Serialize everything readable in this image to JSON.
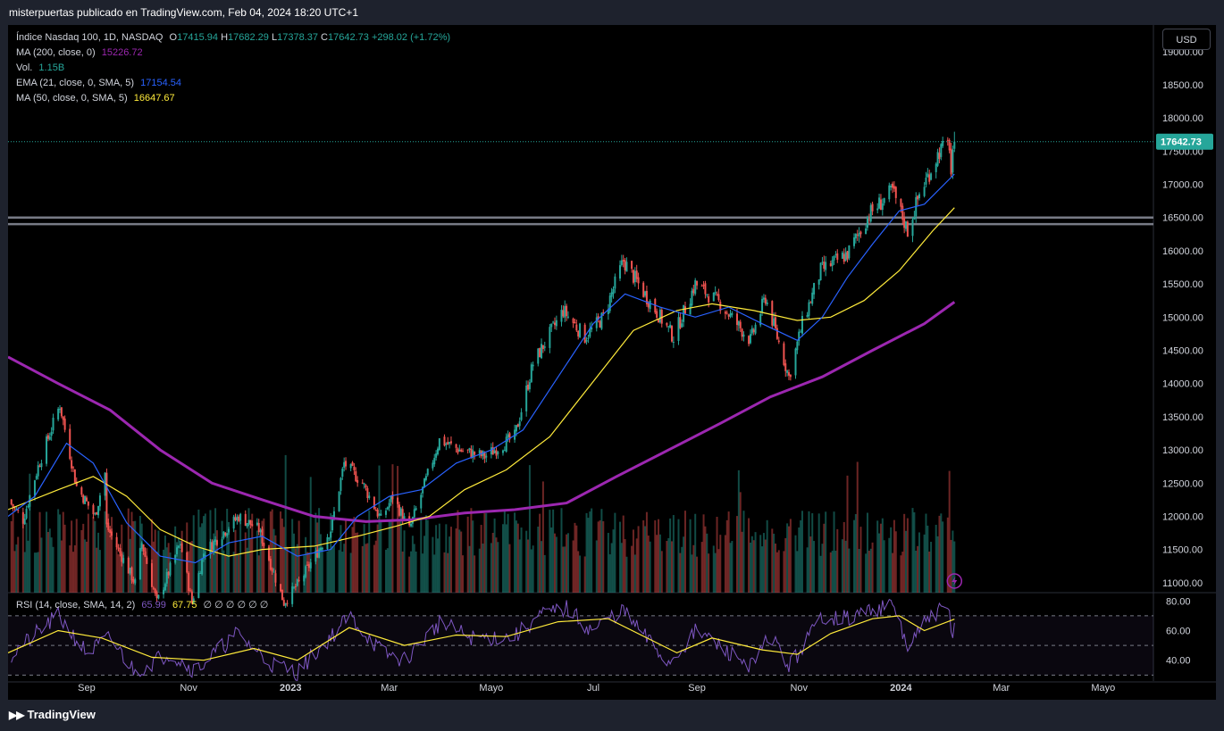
{
  "header": {
    "publisher": "misterpuertas publicado en TradingView.com, Feb 04, 2024 18:20 UTC+1"
  },
  "legend": {
    "symbol": "Índice Nasdaq 100, 1D, NASDAQ",
    "open": "17415.94",
    "high": "17682.29",
    "low": "17378.37",
    "close": "17642.73",
    "change": "+298.02 (+1.72%)",
    "ma200_label": "MA (200, close, 0)",
    "ma200_value": "15226.72",
    "vol_label": "Vol.",
    "vol_value": "1.15B",
    "ema21_label": "EMA (21, close, 0, SMA, 5)",
    "ema21_value": "17154.54",
    "ma50_label": "MA (50, close, 0, SMA, 5)",
    "ma50_value": "16647.67"
  },
  "currency_button": "USD",
  "price_tag": "17642.73",
  "rsi_legend": {
    "label": "RSI (14, close, SMA, 14, 2)",
    "value": "65.99",
    "ma_value": "67.75",
    "extras": "∅ ∅ ∅ ∅ ∅ ∅"
  },
  "footer": {
    "brand": "TradingView"
  },
  "colors": {
    "up": "#26a69a",
    "down": "#ef5350",
    "ma200": "#9c27b0",
    "ema21": "#2962ff",
    "ma50": "#ffeb3b",
    "rsi": "#7e57c2"
  },
  "chart_data": {
    "type": "candlestick",
    "symbol": "Índice Nasdaq 100",
    "timeframe": "1D",
    "price_axis": {
      "ticks": [
        "19000.00",
        "18500.00",
        "18000.00",
        "17500.00",
        "17000.00",
        "16500.00",
        "16000.00",
        "15500.00",
        "15000.00",
        "14500.00",
        "14000.00",
        "13500.00",
        "13000.00",
        "12500.00",
        "12000.00",
        "11500.00",
        "11000.00"
      ],
      "range": [
        10850,
        19400
      ]
    },
    "time_axis": {
      "labels": [
        {
          "label": "Sep",
          "date": "2022-09-01",
          "bold": false
        },
        {
          "label": "Nov",
          "date": "2022-11-01",
          "bold": false
        },
        {
          "label": "2023",
          "date": "2023-01-01",
          "bold": true
        },
        {
          "label": "Mar",
          "date": "2023-03-01",
          "bold": false
        },
        {
          "label": "Mayo",
          "date": "2023-05-01",
          "bold": false
        },
        {
          "label": "Jul",
          "date": "2023-07-01",
          "bold": false
        },
        {
          "label": "Sep",
          "date": "2023-09-01",
          "bold": false
        },
        {
          "label": "Nov",
          "date": "2023-11-01",
          "bold": false
        },
        {
          "label": "2024",
          "date": "2024-01-01",
          "bold": true
        },
        {
          "label": "Mar",
          "date": "2024-03-01",
          "bold": false
        },
        {
          "label": "Mayo",
          "date": "2024-05-01",
          "bold": false
        }
      ],
      "range": [
        "2022-07-16",
        "2024-05-31"
      ]
    },
    "last_price": 17642.73,
    "support_lines": [
      16500,
      16400
    ],
    "price_path": [
      [
        "2022-07-16",
        12250
      ],
      [
        "2022-07-25",
        11950
      ],
      [
        "2022-08-03",
        12750
      ],
      [
        "2022-08-16",
        13680
      ],
      [
        "2022-08-26",
        12450
      ],
      [
        "2022-09-06",
        12000
      ],
      [
        "2022-09-12",
        12650
      ],
      [
        "2022-09-13",
        11850
      ],
      [
        "2022-09-30",
        10990
      ],
      [
        "2022-10-04",
        11600
      ],
      [
        "2022-10-13",
        10700
      ],
      [
        "2022-10-27",
        11600
      ],
      [
        "2022-11-03",
        10700
      ],
      [
        "2022-11-10",
        11450
      ],
      [
        "2022-12-01",
        12000
      ],
      [
        "2022-12-13",
        11800
      ],
      [
        "2022-12-28",
        10700
      ],
      [
        "2023-01-06",
        11000
      ],
      [
        "2023-01-25",
        11800
      ],
      [
        "2023-02-02",
        12800
      ],
      [
        "2023-02-13",
        12500
      ],
      [
        "2023-02-24",
        11950
      ],
      [
        "2023-03-03",
        12300
      ],
      [
        "2023-03-13",
        11800
      ],
      [
        "2023-03-31",
        13150
      ],
      [
        "2023-04-12",
        13000
      ],
      [
        "2023-04-27",
        12900
      ],
      [
        "2023-05-15",
        13200
      ],
      [
        "2023-05-26",
        14300
      ],
      [
        "2023-06-13",
        15100
      ],
      [
        "2023-06-26",
        14700
      ],
      [
        "2023-07-07",
        15000
      ],
      [
        "2023-07-19",
        15850
      ],
      [
        "2023-08-02",
        15300
      ],
      [
        "2023-08-18",
        14700
      ],
      [
        "2023-08-31",
        15500
      ],
      [
        "2023-09-15",
        15200
      ],
      [
        "2023-10-03",
        14650
      ],
      [
        "2023-10-12",
        15300
      ],
      [
        "2023-10-26",
        14100
      ],
      [
        "2023-11-03",
        14900
      ],
      [
        "2023-11-14",
        15700
      ],
      [
        "2023-11-30",
        15950
      ],
      [
        "2023-12-13",
        16550
      ],
      [
        "2023-12-27",
        16900
      ],
      [
        "2024-01-05",
        16300
      ],
      [
        "2024-01-12",
        16850
      ],
      [
        "2024-01-24",
        17500
      ],
      [
        "2024-01-30",
        17600
      ],
      [
        "2024-01-31",
        17150
      ],
      [
        "2024-02-02",
        17642
      ]
    ],
    "ma200": [
      [
        "2022-07-16",
        14400
      ],
      [
        "2022-08-15",
        14000
      ],
      [
        "2022-09-15",
        13600
      ],
      [
        "2022-10-15",
        13000
      ],
      [
        "2022-11-15",
        12500
      ],
      [
        "2022-12-15",
        12250
      ],
      [
        "2023-01-15",
        12000
      ],
      [
        "2023-02-15",
        11920
      ],
      [
        "2023-03-15",
        11950
      ],
      [
        "2023-04-15",
        12050
      ],
      [
        "2023-05-15",
        12100
      ],
      [
        "2023-06-15",
        12200
      ],
      [
        "2023-07-15",
        12600
      ],
      [
        "2023-08-15",
        13000
      ],
      [
        "2023-09-15",
        13400
      ],
      [
        "2023-10-15",
        13800
      ],
      [
        "2023-11-15",
        14100
      ],
      [
        "2023-12-15",
        14500
      ],
      [
        "2024-01-15",
        14900
      ],
      [
        "2024-02-02",
        15226.72
      ]
    ],
    "ema21": [
      [
        "2022-07-16",
        12000
      ],
      [
        "2022-08-01",
        12300
      ],
      [
        "2022-08-20",
        13100
      ],
      [
        "2022-09-05",
        12800
      ],
      [
        "2022-09-25",
        11900
      ],
      [
        "2022-10-15",
        11400
      ],
      [
        "2022-11-05",
        11300
      ],
      [
        "2022-11-25",
        11600
      ],
      [
        "2022-12-15",
        11700
      ],
      [
        "2023-01-05",
        11400
      ],
      [
        "2023-01-25",
        11500
      ],
      [
        "2023-02-10",
        12000
      ],
      [
        "2023-03-01",
        12300
      ],
      [
        "2023-03-20",
        12400
      ],
      [
        "2023-04-10",
        12800
      ],
      [
        "2023-05-01",
        13000
      ],
      [
        "2023-05-20",
        13300
      ],
      [
        "2023-06-10",
        14100
      ],
      [
        "2023-07-01",
        14900
      ],
      [
        "2023-07-20",
        15350
      ],
      [
        "2023-08-10",
        15150
      ],
      [
        "2023-08-31",
        15000
      ],
      [
        "2023-09-20",
        15150
      ],
      [
        "2023-10-10",
        14900
      ],
      [
        "2023-10-31",
        14650
      ],
      [
        "2023-11-15",
        15000
      ],
      [
        "2023-11-30",
        15600
      ],
      [
        "2023-12-15",
        16100
      ],
      [
        "2023-12-31",
        16600
      ],
      [
        "2024-01-15",
        16700
      ],
      [
        "2024-02-02",
        17154.54
      ]
    ],
    "ma50": [
      [
        "2022-07-16",
        12100
      ],
      [
        "2022-08-15",
        12400
      ],
      [
        "2022-09-05",
        12600
      ],
      [
        "2022-09-25",
        12300
      ],
      [
        "2022-10-15",
        11800
      ],
      [
        "2022-11-05",
        11550
      ],
      [
        "2022-11-25",
        11400
      ],
      [
        "2022-12-15",
        11500
      ],
      [
        "2023-01-15",
        11550
      ],
      [
        "2023-02-10",
        11700
      ],
      [
        "2023-03-05",
        11850
      ],
      [
        "2023-03-25",
        12000
      ],
      [
        "2023-04-15",
        12400
      ],
      [
        "2023-05-10",
        12700
      ],
      [
        "2023-06-05",
        13200
      ],
      [
        "2023-06-30",
        14000
      ],
      [
        "2023-07-25",
        14800
      ],
      [
        "2023-08-20",
        15100
      ],
      [
        "2023-09-10",
        15200
      ],
      [
        "2023-10-05",
        15100
      ],
      [
        "2023-10-31",
        14950
      ],
      [
        "2023-11-20",
        15000
      ],
      [
        "2023-12-10",
        15250
      ],
      [
        "2023-12-31",
        15700
      ],
      [
        "2024-01-20",
        16300
      ],
      [
        "2024-02-02",
        16647.67
      ]
    ],
    "rsi_axis": {
      "ticks": [
        "80.00",
        "60.00",
        "40.00"
      ],
      "range": [
        26,
        85
      ]
    },
    "rsi_path": [
      [
        "2022-07-16",
        42
      ],
      [
        "2022-08-15",
        70
      ],
      [
        "2022-09-01",
        45
      ],
      [
        "2022-09-15",
        55
      ],
      [
        "2022-09-30",
        32
      ],
      [
        "2022-10-20",
        45
      ],
      [
        "2022-11-05",
        33
      ],
      [
        "2022-11-30",
        58
      ],
      [
        "2022-12-20",
        38
      ],
      [
        "2023-01-05",
        32
      ],
      [
        "2023-01-30",
        62
      ],
      [
        "2023-02-05",
        70
      ],
      [
        "2023-02-25",
        45
      ],
      [
        "2023-03-10",
        40
      ],
      [
        "2023-03-31",
        65
      ],
      [
        "2023-04-20",
        55
      ],
      [
        "2023-05-15",
        56
      ],
      [
        "2023-05-30",
        70
      ],
      [
        "2023-06-15",
        75
      ],
      [
        "2023-06-30",
        60
      ],
      [
        "2023-07-18",
        74
      ],
      [
        "2023-08-15",
        38
      ],
      [
        "2023-09-01",
        60
      ],
      [
        "2023-09-20",
        45
      ],
      [
        "2023-10-05",
        36
      ],
      [
        "2023-10-15",
        58
      ],
      [
        "2023-10-26",
        35
      ],
      [
        "2023-11-15",
        70
      ],
      [
        "2023-12-01",
        68
      ],
      [
        "2023-12-15",
        75
      ],
      [
        "2023-12-28",
        76
      ],
      [
        "2024-01-05",
        48
      ],
      [
        "2024-01-20",
        72
      ],
      [
        "2024-01-30",
        74
      ],
      [
        "2024-01-31",
        55
      ],
      [
        "2024-02-02",
        65.99
      ]
    ],
    "rsi_ma": [
      [
        "2022-07-16",
        45
      ],
      [
        "2022-08-15",
        60
      ],
      [
        "2022-09-10",
        55
      ],
      [
        "2022-10-10",
        42
      ],
      [
        "2022-11-10",
        40
      ],
      [
        "2022-12-10",
        48
      ],
      [
        "2023-01-05",
        40
      ],
      [
        "2023-02-05",
        62
      ],
      [
        "2023-03-10",
        50
      ],
      [
        "2023-04-10",
        57
      ],
      [
        "2023-05-10",
        56
      ],
      [
        "2023-06-10",
        66
      ],
      [
        "2023-07-10",
        68
      ],
      [
        "2023-08-20",
        45
      ],
      [
        "2023-09-10",
        55
      ],
      [
        "2023-10-10",
        47
      ],
      [
        "2023-10-31",
        44
      ],
      [
        "2023-11-20",
        58
      ],
      [
        "2023-12-15",
        68
      ],
      [
        "2023-12-31",
        70
      ],
      [
        "2024-01-15",
        60
      ],
      [
        "2024-02-02",
        67.75
      ]
    ]
  }
}
